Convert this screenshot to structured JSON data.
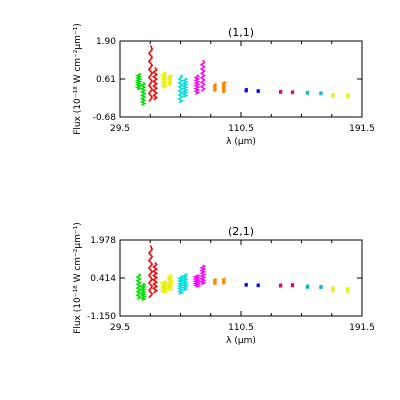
{
  "chart_data": [
    {
      "type": "scatter",
      "title": "(1,1)",
      "xlabel": "λ (μm)",
      "ylabel": "Flux (10⁻¹⁸ W cm⁻²μm⁻¹)",
      "xlim": [
        29.5,
        191.5
      ],
      "ylim": [
        -0.68,
        1.9
      ],
      "xticks": [
        "29.5",
        "110.5",
        "191.5"
      ],
      "yticks": [
        "-0.68",
        "0.61",
        "1.90"
      ],
      "series": [
        {
          "color": "#00dd00",
          "x": [
            42,
            45
          ],
          "y_range": [
            [
              0.25,
              0.8
            ],
            [
              -0.28,
              0.5
            ]
          ]
        },
        {
          "color": "#ff0000",
          "x": [
            50,
            53
          ],
          "y_range": [
            [
              -0.15,
              1.75
            ],
            [
              -0.1,
              1.0
            ]
          ]
        },
        {
          "color": "#eeee00",
          "x": [
            59,
            63
          ],
          "y_range": [
            [
              0.3,
              0.85
            ],
            [
              0.4,
              0.75
            ]
          ]
        },
        {
          "color": "#00dddd",
          "x": [
            70,
            73
          ],
          "y_range": [
            [
              -0.2,
              0.75
            ],
            [
              0.0,
              0.65
            ]
          ]
        },
        {
          "color": "#ff00ff",
          "x": [
            81,
            85
          ],
          "y_range": [
            [
              0.1,
              0.75
            ],
            [
              0.2,
              1.25
            ]
          ]
        },
        {
          "color": "#ff8800",
          "x": [
            93,
            99
          ],
          "y_range": [
            [
              0.2,
              0.45
            ],
            [
              0.15,
              0.52
            ]
          ]
        },
        {
          "color": "#0000ff",
          "x": [
            114,
            122
          ],
          "y_range": [
            [
              0.18,
              0.28
            ],
            [
              0.16,
              0.24
            ]
          ]
        },
        {
          "color": "#dd0077",
          "x": [
            137,
            145
          ],
          "y_range": [
            [
              0.13,
              0.22
            ],
            [
              0.12,
              0.2
            ]
          ]
        },
        {
          "color": "#00bbbb",
          "x": [
            155,
            164
          ],
          "y_range": [
            [
              0.1,
              0.18
            ],
            [
              0.08,
              0.17
            ]
          ]
        },
        {
          "color": "#eeee00",
          "x": [
            172,
            182
          ],
          "y_range": [
            [
              0.0,
              0.12
            ],
            [
              -0.02,
              0.1
            ]
          ]
        }
      ]
    },
    {
      "type": "scatter",
      "title": "(2,1)",
      "xlabel": "λ (μm)",
      "ylabel": "Flux (10⁻¹⁸ W cm⁻²μm⁻¹)",
      "xlim": [
        29.5,
        191.5
      ],
      "ylim": [
        -1.15,
        1.978
      ],
      "xticks": [
        "29.5",
        "110.5",
        "191.5"
      ],
      "yticks": [
        "-1.150",
        "0.414",
        "1.978"
      ],
      "series": [
        {
          "color": "#00dd00",
          "x": [
            42,
            45
          ],
          "y_range": [
            [
              -0.45,
              0.6
            ],
            [
              -0.5,
              0.2
            ]
          ]
        },
        {
          "color": "#ff0000",
          "x": [
            50,
            53
          ],
          "y_range": [
            [
              -0.4,
              1.75
            ],
            [
              -0.2,
              1.05
            ]
          ]
        },
        {
          "color": "#eeee00",
          "x": [
            59,
            63
          ],
          "y_range": [
            [
              -0.2,
              0.3
            ],
            [
              -0.1,
              0.55
            ]
          ]
        },
        {
          "color": "#00dddd",
          "x": [
            70,
            73
          ],
          "y_range": [
            [
              -0.25,
              0.5
            ],
            [
              -0.1,
              0.6
            ]
          ]
        },
        {
          "color": "#ff00ff",
          "x": [
            81,
            85
          ],
          "y_range": [
            [
              0.05,
              0.55
            ],
            [
              0.15,
              0.95
            ]
          ]
        },
        {
          "color": "#ff8800",
          "x": [
            93,
            99
          ],
          "y_range": [
            [
              0.15,
              0.38
            ],
            [
              0.18,
              0.4
            ]
          ]
        },
        {
          "color": "#0000ff",
          "x": [
            114,
            122
          ],
          "y_range": [
            [
              0.08,
              0.18
            ],
            [
              0.07,
              0.16
            ]
          ]
        },
        {
          "color": "#dd0077",
          "x": [
            137,
            145
          ],
          "y_range": [
            [
              0.05,
              0.16
            ],
            [
              0.06,
              0.18
            ]
          ]
        },
        {
          "color": "#00bbbb",
          "x": [
            155,
            164
          ],
          "y_range": [
            [
              0.0,
              0.12
            ],
            [
              -0.02,
              0.1
            ]
          ]
        },
        {
          "color": "#eeee00",
          "x": [
            172,
            182
          ],
          "y_range": [
            [
              -0.15,
              0.05
            ],
            [
              -0.18,
              0.02
            ]
          ]
        }
      ]
    }
  ]
}
